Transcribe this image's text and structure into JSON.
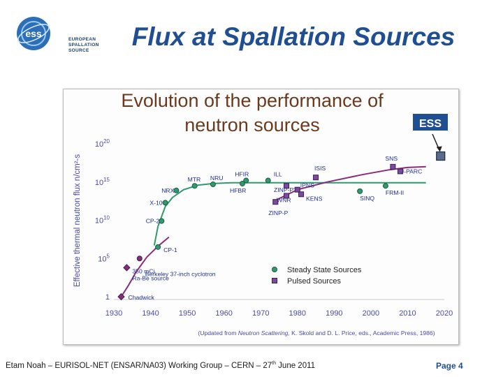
{
  "header": {
    "logo_mark": "ess",
    "logo_lines": [
      "EUROPEAN",
      "SPALLATION",
      "SOURCE"
    ],
    "title": "Flux at Spallation Sources"
  },
  "footer": {
    "text_before": "Etam Noah – EURISOL-NET (ENSAR/NA03) Working Group – CERN – 27",
    "sup": "th",
    "text_after": " June 2011",
    "page": "Page 4"
  },
  "colors": {
    "steady": "#2f9a6e",
    "pulsed": "#8a2c7a",
    "pulsed_marker": "#7b4a9e",
    "ess_box": "#1f4e92",
    "title_brown": "#6b3a1e"
  },
  "chart_data": {
    "type": "scatter",
    "title_lines": [
      "Evolution of the performance of",
      "neutron sources"
    ],
    "ylabel": "Effective thermal neutron flux n/cm²-s",
    "xlim": [
      1930,
      2020
    ],
    "ylim_log10": [
      0,
      20
    ],
    "x_ticks": [
      "1930",
      "1940",
      "1950",
      "1960",
      "1970",
      "1980",
      "1990",
      "2000",
      "2010",
      "2020"
    ],
    "y_ticks": [
      {
        "log": 0,
        "base": "1",
        "exp": ""
      },
      {
        "log": 5,
        "base": "10",
        "exp": "5"
      },
      {
        "log": 10,
        "base": "10",
        "exp": "10"
      },
      {
        "log": 15,
        "base": "10",
        "exp": "15"
      },
      {
        "log": 20,
        "base": "10",
        "exp": "20"
      }
    ],
    "legend": [
      {
        "name": "Steady State Sources",
        "kind": "steady"
      },
      {
        "name": "Pulsed Sources",
        "kind": "pulsed"
      }
    ],
    "note": {
      "prefix": "(Updated from ",
      "italic": "Neutron Scattering,",
      "suffix": " K. Skold and D. L. Price, eds., Academic Press, 1986)"
    },
    "ess_label": "ESS",
    "ess_point": {
      "x": 2019,
      "y": 18.4
    },
    "curves": [
      {
        "kind": "pulsed",
        "points": [
          [
            1932,
            0
          ],
          [
            1934,
            1.5
          ],
          [
            1936,
            3.2
          ],
          [
            1939,
            5.2
          ],
          [
            1942,
            6.6
          ],
          [
            1945,
            7.8
          ]
        ]
      },
      {
        "kind": "steady",
        "points": [
          [
            1941,
            6.7
          ],
          [
            1942,
            9.2
          ],
          [
            1944,
            11.8
          ],
          [
            1946,
            13.0
          ],
          [
            1949,
            14.0
          ],
          [
            1953,
            14.6
          ],
          [
            1957,
            14.8
          ],
          [
            1962,
            14.9
          ],
          [
            2015,
            14.9
          ]
        ]
      },
      {
        "kind": "pulsed",
        "points": [
          [
            1974,
            12.6
          ],
          [
            1980,
            14.0
          ],
          [
            1988,
            15.0
          ],
          [
            1998,
            16.0
          ],
          [
            2005,
            16.6
          ],
          [
            2010,
            16.9
          ],
          [
            2015,
            17.0
          ]
        ]
      }
    ],
    "points": [
      {
        "label": "Chadwick",
        "kind": "pulsed",
        "x": 1932,
        "y": 0,
        "marker": "diamond"
      },
      {
        "label": "350 mCi",
        "kind": "pulsed",
        "x": 1933.5,
        "y": 3.8,
        "marker": "diamond"
      },
      {
        "label": "Ra-Be source",
        "kind": "pulsed",
        "x": 1933.5,
        "y": 3.8,
        "marker": "none"
      },
      {
        "label": "Berkeley 37-inch cyclotron",
        "kind": "pulsed",
        "x": 1937,
        "y": 5.0,
        "marker": "circle"
      },
      {
        "label": "CP-1",
        "kind": "steady",
        "x": 1942,
        "y": 6.5
      },
      {
        "label": "CP-2",
        "kind": "steady",
        "x": 1943,
        "y": 9.9
      },
      {
        "label": "X-10",
        "kind": "steady",
        "x": 1944,
        "y": 12.3
      },
      {
        "label": "NRX",
        "kind": "steady",
        "x": 1947,
        "y": 13.9
      },
      {
        "label": "MTR",
        "kind": "steady",
        "x": 1952,
        "y": 14.5
      },
      {
        "label": "NRU",
        "kind": "steady",
        "x": 1957,
        "y": 14.7
      },
      {
        "label": "HFIR",
        "kind": "steady",
        "x": 1966,
        "y": 15.2
      },
      {
        "label": "HFBR",
        "kind": "steady",
        "x": 1965,
        "y": 14.8
      },
      {
        "label": "ILL",
        "kind": "steady",
        "x": 1972,
        "y": 15.2
      },
      {
        "label": "ZINP-P'",
        "kind": "pulsed",
        "x": 1977,
        "y": 14.5
      },
      {
        "label": "WNR",
        "kind": "pulsed",
        "x": 1977,
        "y": 13.2
      },
      {
        "label": "IPNS",
        "kind": "pulsed",
        "x": 1980,
        "y": 14.0
      },
      {
        "label": "KENS",
        "kind": "pulsed",
        "x": 1981,
        "y": 13.4
      },
      {
        "label": "ZINP-P",
        "kind": "pulsed",
        "x": 1974,
        "y": 12.4
      },
      {
        "label": "ISIS",
        "kind": "pulsed",
        "x": 1985,
        "y": 15.6
      },
      {
        "label": "SINQ",
        "kind": "steady",
        "x": 1997,
        "y": 13.8
      },
      {
        "label": "FRM-II",
        "kind": "steady",
        "x": 2004,
        "y": 14.5
      },
      {
        "label": "J-PARC",
        "kind": "pulsed",
        "x": 2008,
        "y": 16.4
      },
      {
        "label": "SNS",
        "kind": "pulsed",
        "x": 2006,
        "y": 17.0
      }
    ]
  }
}
